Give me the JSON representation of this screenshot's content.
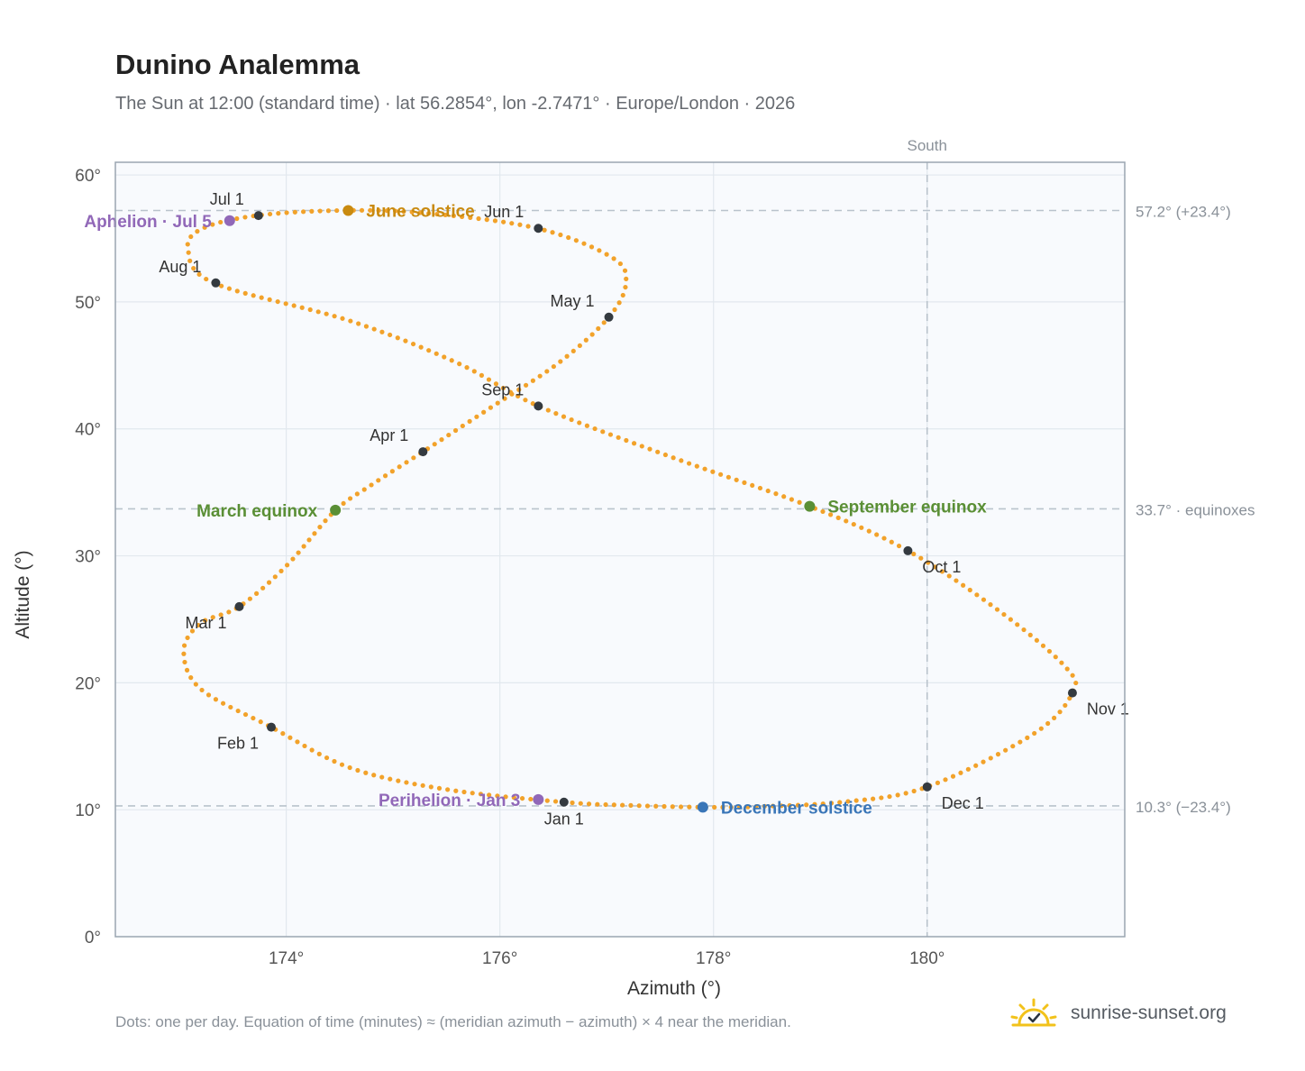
{
  "title": "Dunino Analemma",
  "subtitle": "The Sun at 12:00 (standard time) · lat 56.2854°, lon -2.7471° · Europe/London · 2026",
  "footnote": "Dots: one per day. Equation of time (minutes) ≈ (meridian azimuth − azimuth) × 4 near the meridian.",
  "brand": {
    "name": "sunrise-sunset.org",
    "icon": "sun-logo-icon"
  },
  "colors": {
    "path": "#f2a22a",
    "month_marker": "#343a40",
    "solstice_june": "#c98a10",
    "solstice_december": "#3a76b8",
    "equinox": "#5a8f35",
    "aphelion_perihelion": "#9168b8",
    "reference_line": "#b9c3cc",
    "plot_bg": "#f8fafd",
    "grid": "#e2e8ee",
    "axis_border": "#9aa5b1"
  },
  "chart_data": {
    "type": "scatter",
    "xlabel": "Azimuth (°)",
    "ylabel": "Altitude (°)",
    "xlim": [
      172.4,
      181.85
    ],
    "ylim": [
      0,
      61
    ],
    "xticks": [
      174,
      176,
      178,
      180
    ],
    "xtick_labels": [
      "174°",
      "176°",
      "178°",
      "180°"
    ],
    "yticks": [
      0,
      10,
      20,
      30,
      40,
      50,
      60
    ],
    "ytick_labels": [
      "0°",
      "10°",
      "20°",
      "30°",
      "40°",
      "50°",
      "60°"
    ],
    "grid": true,
    "meridian": {
      "azimuth": 180,
      "label": "South"
    },
    "reference_lines": [
      {
        "altitude": 57.2,
        "label": "57.2° (+23.4°)"
      },
      {
        "altitude": 33.7,
        "label": "33.7° · equinoxes"
      },
      {
        "altitude": 10.3,
        "label": "10.3° (−23.4°)"
      }
    ],
    "path_anchor_points": [
      {
        "x": 176.6,
        "y": 10.6
      },
      {
        "x": 175.5,
        "y": 11.6
      },
      {
        "x": 174.6,
        "y": 13.3
      },
      {
        "x": 173.86,
        "y": 16.5
      },
      {
        "x": 173.2,
        "y": 19.5
      },
      {
        "x": 173.04,
        "y": 22.5
      },
      {
        "x": 173.2,
        "y": 24.7
      },
      {
        "x": 173.56,
        "y": 26.0
      },
      {
        "x": 174.0,
        "y": 29.2
      },
      {
        "x": 174.45,
        "y": 33.5
      },
      {
        "x": 174.8,
        "y": 35.6
      },
      {
        "x": 175.28,
        "y": 38.2
      },
      {
        "x": 175.9,
        "y": 41.6
      },
      {
        "x": 176.55,
        "y": 45.2
      },
      {
        "x": 177.02,
        "y": 48.8
      },
      {
        "x": 177.18,
        "y": 51.5
      },
      {
        "x": 177.05,
        "y": 53.5
      },
      {
        "x": 176.35,
        "y": 55.8
      },
      {
        "x": 175.3,
        "y": 57.0
      },
      {
        "x": 174.5,
        "y": 57.2
      },
      {
        "x": 173.72,
        "y": 56.8
      },
      {
        "x": 173.22,
        "y": 55.8
      },
      {
        "x": 173.08,
        "y": 54.2
      },
      {
        "x": 173.32,
        "y": 51.5
      },
      {
        "x": 174.6,
        "y": 48.5
      },
      {
        "x": 175.6,
        "y": 45.2
      },
      {
        "x": 176.36,
        "y": 41.8
      },
      {
        "x": 177.6,
        "y": 37.8
      },
      {
        "x": 178.9,
        "y": 33.9
      },
      {
        "x": 179.82,
        "y": 30.4
      },
      {
        "x": 180.7,
        "y": 25.5
      },
      {
        "x": 181.3,
        "y": 21.2
      },
      {
        "x": 181.36,
        "y": 19.2
      },
      {
        "x": 181.0,
        "y": 16.0
      },
      {
        "x": 180.0,
        "y": 11.8
      },
      {
        "x": 179.2,
        "y": 10.6
      },
      {
        "x": 178.4,
        "y": 10.25
      },
      {
        "x": 177.9,
        "y": 10.2
      },
      {
        "x": 177.2,
        "y": 10.35
      }
    ],
    "month_markers": [
      {
        "label": "Jan 1",
        "x": 176.6,
        "y": 10.6,
        "pos": "below"
      },
      {
        "label": "Feb 1",
        "x": 173.86,
        "y": 16.5,
        "pos": "below-left"
      },
      {
        "label": "Mar 1",
        "x": 173.56,
        "y": 26.0,
        "pos": "below-left"
      },
      {
        "label": "Apr 1",
        "x": 175.28,
        "y": 38.2,
        "pos": "above-left"
      },
      {
        "label": "May 1",
        "x": 177.02,
        "y": 48.8,
        "pos": "above-left"
      },
      {
        "label": "Jun 1",
        "x": 176.36,
        "y": 55.8,
        "pos": "above-left"
      },
      {
        "label": "Jul 1",
        "x": 173.74,
        "y": 56.8,
        "pos": "above-left"
      },
      {
        "label": "Aug 1",
        "x": 173.34,
        "y": 51.5,
        "pos": "above-left"
      },
      {
        "label": "Sep 1",
        "x": 176.36,
        "y": 41.8,
        "pos": "above-left"
      },
      {
        "label": "Oct 1",
        "x": 179.82,
        "y": 30.4,
        "pos": "below-right"
      },
      {
        "label": "Nov 1",
        "x": 181.36,
        "y": 19.2,
        "pos": "below-right"
      },
      {
        "label": "Dec 1",
        "x": 180.0,
        "y": 11.8,
        "pos": "below-right"
      }
    ],
    "events": [
      {
        "label": "June solstice",
        "x": 174.58,
        "y": 57.2,
        "kind": "solstice_june",
        "pos": "right"
      },
      {
        "label": "December solstice",
        "x": 177.9,
        "y": 10.2,
        "kind": "solstice_december",
        "pos": "right"
      },
      {
        "label": "March equinox",
        "x": 174.46,
        "y": 33.6,
        "kind": "equinox",
        "pos": "left"
      },
      {
        "label": "September equinox",
        "x": 178.9,
        "y": 33.9,
        "kind": "equinox",
        "pos": "right"
      },
      {
        "label": "Aphelion · Jul 5",
        "x": 173.47,
        "y": 56.4,
        "kind": "aphelion_perihelion",
        "pos": "left"
      },
      {
        "label": "Perihelion · Jan 3",
        "x": 176.36,
        "y": 10.8,
        "kind": "aphelion_perihelion",
        "pos": "left"
      }
    ]
  }
}
